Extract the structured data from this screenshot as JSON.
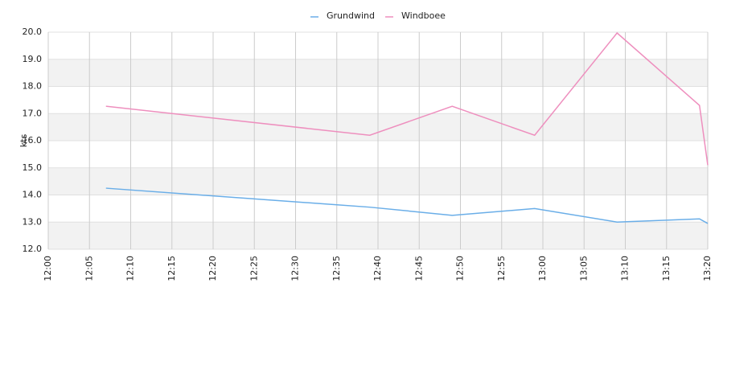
{
  "chart_data": {
    "type": "line",
    "x": [
      "12:07",
      "12:39",
      "12:49",
      "12:59",
      "13:09",
      "13:19",
      "13:20"
    ],
    "series": [
      {
        "name": "Grundwind",
        "color": "#6aaee8",
        "values": [
          14.25,
          13.55,
          13.25,
          13.5,
          13.0,
          13.12,
          12.95
        ]
      },
      {
        "name": "Windboee",
        "color": "#ee8fbe",
        "values": [
          17.27,
          16.2,
          17.27,
          16.2,
          19.97,
          17.3,
          15.1
        ]
      }
    ],
    "ylabel": "kts",
    "xlim": [
      "12:00",
      "13:20"
    ],
    "xticks": [
      "12:00",
      "12:05",
      "12:10",
      "12:15",
      "12:20",
      "12:25",
      "12:30",
      "12:35",
      "12:40",
      "12:45",
      "12:50",
      "12:55",
      "13:00",
      "13:05",
      "13:10",
      "13:15",
      "13:20"
    ],
    "ylim": [
      12,
      20
    ],
    "yticks": [
      {
        "value": 12,
        "label": "12.0"
      },
      {
        "value": 13,
        "label": "13.0"
      },
      {
        "value": 14,
        "label": "14.0"
      },
      {
        "value": 15,
        "label": "15.0"
      },
      {
        "value": 16,
        "label": "16.0"
      },
      {
        "value": 17,
        "label": "17.0"
      },
      {
        "value": 18,
        "label": "18.0"
      },
      {
        "value": 19,
        "label": "19.0"
      },
      {
        "value": 20,
        "label": "20.0"
      }
    ],
    "grid": true,
    "legend": "top"
  }
}
